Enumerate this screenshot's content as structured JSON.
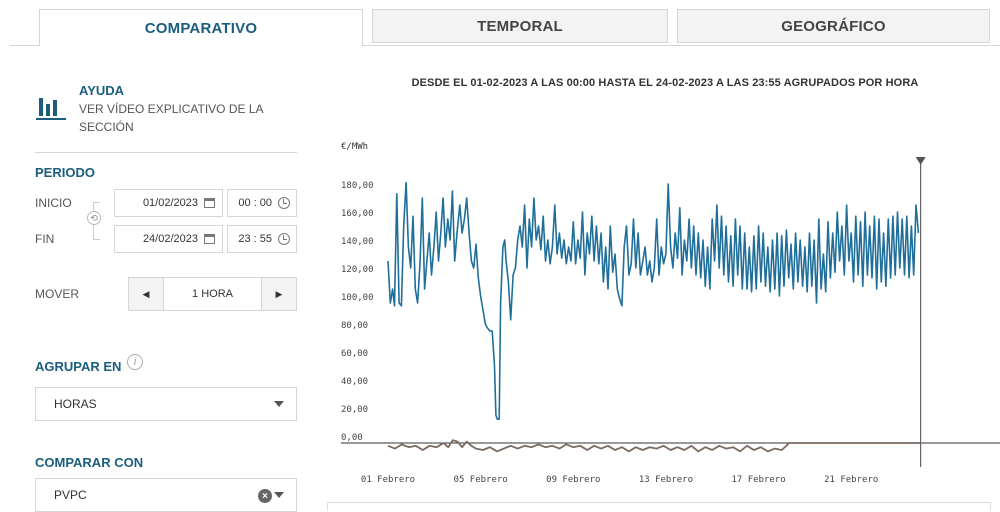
{
  "tabs": [
    {
      "label": "COMPARATIVO",
      "active": true
    },
    {
      "label": "TEMPORAL",
      "active": false
    },
    {
      "label": "GEOGRÁFICO",
      "active": false
    }
  ],
  "help": {
    "icon": "bar-chart-icon",
    "title": "AYUDA",
    "description": "VER VÍDEO EXPLICATIVO DE LA SECCIÓN"
  },
  "periodo": {
    "title": "PERIODO",
    "inicio_label": "INICIO",
    "inicio_date": "01/02/2023",
    "inicio_time": "00 : 00",
    "fin_label": "FIN",
    "fin_date": "24/02/2023",
    "fin_time": "23 : 55"
  },
  "mover": {
    "label": "MOVER",
    "value": "1 HORA",
    "prev": "◀",
    "next": "▶"
  },
  "agrupar": {
    "title": "AGRUPAR EN",
    "info": "i",
    "value": "HORAS"
  },
  "comparar": {
    "title": "COMPARAR CON",
    "value": "PVPC",
    "clear": "×"
  },
  "colors": {
    "accent": "#1a5e7e",
    "series_main": "#1f6f9a",
    "series_secondary": "#7a6a62"
  },
  "chart_data": {
    "type": "line",
    "title": "DESDE EL 01-02-2023 A LAS 00:00 HASTA EL 24-02-2023 A LAS 23:55 AGRUPADOS POR HORA",
    "ylabel": "€/MWh",
    "ylim": [
      -5,
      190
    ],
    "yticks": [
      "180,00",
      "160,00",
      "140,00",
      "120,00",
      "100,00",
      "80,00",
      "60,00",
      "40,00",
      "20,00",
      "0,00"
    ],
    "xticks": [
      "01 Febrero",
      "05 Febrero",
      "09 Febrero",
      "13 Febrero",
      "17 Febrero",
      "21 Febrero"
    ],
    "xrange_days": [
      0,
      24
    ],
    "grid": false,
    "legend": "none",
    "series": [
      {
        "color": "#1f6f9a",
        "points": [
          [
            0.0,
            130
          ],
          [
            0.1,
            100
          ],
          [
            0.2,
            110
          ],
          [
            0.28,
            98
          ],
          [
            0.38,
            178
          ],
          [
            0.48,
            100
          ],
          [
            0.58,
            98
          ],
          [
            0.68,
            155
          ],
          [
            0.78,
            186
          ],
          [
            0.88,
            140
          ],
          [
            0.98,
            125
          ],
          [
            1.08,
            162
          ],
          [
            1.18,
            110
          ],
          [
            1.28,
            100
          ],
          [
            1.38,
            128
          ],
          [
            1.48,
            175
          ],
          [
            1.58,
            110
          ],
          [
            1.68,
            130
          ],
          [
            1.78,
            150
          ],
          [
            1.88,
            120
          ],
          [
            1.98,
            140
          ],
          [
            2.08,
            165
          ],
          [
            2.18,
            130
          ],
          [
            2.28,
            150
          ],
          [
            2.38,
            175
          ],
          [
            2.48,
            140
          ],
          [
            2.58,
            160
          ],
          [
            2.68,
            145
          ],
          [
            2.78,
            180
          ],
          [
            2.88,
            130
          ],
          [
            2.98,
            150
          ],
          [
            3.1,
            170
          ],
          [
            3.2,
            150
          ],
          [
            3.3,
            160
          ],
          [
            3.4,
            175
          ],
          [
            3.5,
            150
          ],
          [
            3.6,
            130
          ],
          [
            3.7,
            125
          ],
          [
            3.8,
            142
          ],
          [
            3.9,
            118
          ],
          [
            4.0,
            105
          ],
          [
            4.1,
            95
          ],
          [
            4.2,
            85
          ],
          [
            4.3,
            82
          ],
          [
            4.4,
            80
          ],
          [
            4.5,
            80
          ],
          [
            4.6,
            55
          ],
          [
            4.66,
            20
          ],
          [
            4.72,
            17
          ],
          [
            4.8,
            17
          ],
          [
            4.86,
            100
          ],
          [
            4.96,
            140
          ],
          [
            5.04,
            145
          ],
          [
            5.1,
            130
          ],
          [
            5.2,
            115
          ],
          [
            5.3,
            88
          ],
          [
            5.4,
            120
          ],
          [
            5.5,
            125
          ],
          [
            5.6,
            145
          ],
          [
            5.7,
            155
          ],
          [
            5.8,
            140
          ],
          [
            5.9,
            170
          ],
          [
            6.0,
            125
          ],
          [
            6.1,
            160
          ],
          [
            6.2,
            140
          ],
          [
            6.3,
            175
          ],
          [
            6.4,
            145
          ],
          [
            6.5,
            155
          ],
          [
            6.6,
            138
          ],
          [
            6.7,
            162
          ],
          [
            6.8,
            130
          ],
          [
            6.9,
            145
          ],
          [
            7.0,
            128
          ],
          [
            7.1,
            140
          ],
          [
            7.2,
            170
          ],
          [
            7.3,
            135
          ],
          [
            7.4,
            150
          ],
          [
            7.5,
            132
          ],
          [
            7.6,
            145
          ],
          [
            7.7,
            128
          ],
          [
            7.8,
            140
          ],
          [
            7.9,
            130
          ],
          [
            8.0,
            158
          ],
          [
            8.1,
            128
          ],
          [
            8.2,
            145
          ],
          [
            8.3,
            132
          ],
          [
            8.4,
            165
          ],
          [
            8.5,
            120
          ],
          [
            8.6,
            150
          ],
          [
            8.7,
            135
          ],
          [
            8.8,
            162
          ],
          [
            8.9,
            130
          ],
          [
            9.0,
            155
          ],
          [
            9.1,
            128
          ],
          [
            9.2,
            150
          ],
          [
            9.3,
            115
          ],
          [
            9.4,
            140
          ],
          [
            9.5,
            110
          ],
          [
            9.6,
            155
          ],
          [
            9.7,
            122
          ],
          [
            9.8,
            135
          ],
          [
            9.9,
            110
          ],
          [
            10.0,
            103
          ],
          [
            10.1,
            98
          ],
          [
            10.2,
            140
          ],
          [
            10.3,
            155
          ],
          [
            10.4,
            120
          ],
          [
            10.5,
            128
          ],
          [
            10.6,
            160
          ],
          [
            10.7,
            125
          ],
          [
            10.8,
            150
          ],
          [
            10.9,
            120
          ],
          [
            11.0,
            130
          ],
          [
            11.1,
            140
          ],
          [
            11.2,
            120
          ],
          [
            11.3,
            130
          ],
          [
            11.4,
            115
          ],
          [
            11.5,
            125
          ],
          [
            11.6,
            160
          ],
          [
            11.7,
            120
          ],
          [
            11.8,
            140
          ],
          [
            11.9,
            128
          ],
          [
            12.0,
            135
          ],
          [
            12.1,
            185
          ],
          [
            12.2,
            140
          ],
          [
            12.3,
            125
          ],
          [
            12.4,
            150
          ],
          [
            12.5,
            132
          ],
          [
            12.6,
            168
          ],
          [
            12.7,
            120
          ],
          [
            12.8,
            145
          ],
          [
            12.9,
            130
          ],
          [
            13.0,
            160
          ],
          [
            13.1,
            125
          ],
          [
            13.2,
            155
          ],
          [
            13.3,
            120
          ],
          [
            13.4,
            150
          ],
          [
            13.5,
            118
          ],
          [
            13.6,
            145
          ],
          [
            13.7,
            112
          ],
          [
            13.8,
            140
          ],
          [
            13.9,
            110
          ],
          [
            14.0,
            160
          ],
          [
            14.1,
            130
          ],
          [
            14.2,
            170
          ],
          [
            14.3,
            125
          ],
          [
            14.4,
            162
          ],
          [
            14.5,
            120
          ],
          [
            14.6,
            155
          ],
          [
            14.7,
            115
          ],
          [
            14.8,
            148
          ],
          [
            14.9,
            112
          ],
          [
            15.0,
            160
          ],
          [
            15.1,
            120
          ],
          [
            15.2,
            155
          ],
          [
            15.3,
            110
          ],
          [
            15.4,
            150
          ],
          [
            15.5,
            110
          ],
          [
            15.6,
            140
          ],
          [
            15.7,
            108
          ],
          [
            15.8,
            148
          ],
          [
            15.9,
            110
          ],
          [
            16.0,
            155
          ],
          [
            16.1,
            115
          ],
          [
            16.2,
            150
          ],
          [
            16.3,
            112
          ],
          [
            16.4,
            140
          ],
          [
            16.5,
            108
          ],
          [
            16.6,
            145
          ],
          [
            16.7,
            110
          ],
          [
            16.8,
            150
          ],
          [
            16.9,
            105
          ],
          [
            17.0,
            148
          ],
          [
            17.1,
            112
          ],
          [
            17.2,
            152
          ],
          [
            17.3,
            118
          ],
          [
            17.4,
            142
          ],
          [
            17.5,
            110
          ],
          [
            17.6,
            150
          ],
          [
            17.7,
            115
          ],
          [
            17.8,
            145
          ],
          [
            17.9,
            112
          ],
          [
            18.0,
            140
          ],
          [
            18.1,
            108
          ],
          [
            18.2,
            150
          ],
          [
            18.3,
            112
          ],
          [
            18.4,
            145
          ],
          [
            18.5,
            100
          ],
          [
            18.6,
            160
          ],
          [
            18.7,
            110
          ],
          [
            18.8,
            135
          ],
          [
            18.9,
            108
          ],
          [
            19.0,
            158
          ],
          [
            19.1,
            118
          ],
          [
            19.2,
            150
          ],
          [
            19.3,
            122
          ],
          [
            19.4,
            165
          ],
          [
            19.5,
            130
          ],
          [
            19.6,
            155
          ],
          [
            19.7,
            120
          ],
          [
            19.8,
            170
          ],
          [
            19.9,
            130
          ],
          [
            20.0,
            150
          ],
          [
            20.1,
            115
          ],
          [
            20.2,
            162
          ],
          [
            20.3,
            120
          ],
          [
            20.4,
            158
          ],
          [
            20.5,
            112
          ],
          [
            20.6,
            165
          ],
          [
            20.7,
            120
          ],
          [
            20.8,
            155
          ],
          [
            20.9,
            118
          ],
          [
            21.0,
            162
          ],
          [
            21.1,
            110
          ],
          [
            21.2,
            160
          ],
          [
            21.3,
            115
          ],
          [
            21.4,
            150
          ],
          [
            21.5,
            112
          ],
          [
            21.6,
            160
          ],
          [
            21.7,
            118
          ],
          [
            21.8,
            162
          ],
          [
            21.9,
            120
          ],
          [
            22.0,
            165
          ],
          [
            22.1,
            125
          ],
          [
            22.2,
            160
          ],
          [
            22.3,
            120
          ],
          [
            22.4,
            162
          ],
          [
            22.5,
            118
          ],
          [
            22.6,
            155
          ],
          [
            22.7,
            120
          ],
          [
            22.8,
            170
          ],
          [
            22.9,
            150
          ]
        ]
      },
      {
        "color": "#7a6a62",
        "points": [
          [
            0.0,
            -2
          ],
          [
            0.3,
            -4
          ],
          [
            0.6,
            -1
          ],
          [
            0.9,
            -3
          ],
          [
            1.2,
            -2
          ],
          [
            1.5,
            -5
          ],
          [
            1.8,
            -2
          ],
          [
            2.1,
            -3
          ],
          [
            2.4,
            0
          ],
          [
            2.6,
            -3
          ],
          [
            2.8,
            2
          ],
          [
            3.0,
            1
          ],
          [
            3.2,
            -3
          ],
          [
            3.4,
            1
          ],
          [
            3.6,
            -2
          ],
          [
            3.8,
            -4
          ],
          [
            4.1,
            -5
          ],
          [
            4.4,
            -3
          ],
          [
            4.7,
            -6
          ],
          [
            5.0,
            -4
          ],
          [
            5.3,
            -2
          ],
          [
            5.6,
            -4
          ],
          [
            5.9,
            -2
          ],
          [
            6.2,
            -3
          ],
          [
            6.5,
            -1
          ],
          [
            6.8,
            -3
          ],
          [
            7.1,
            -2
          ],
          [
            7.4,
            -4
          ],
          [
            7.7,
            -1
          ],
          [
            8.0,
            -3
          ],
          [
            8.3,
            -2
          ],
          [
            8.6,
            -5
          ],
          [
            8.9,
            -2
          ],
          [
            9.2,
            -4
          ],
          [
            9.5,
            -2
          ],
          [
            9.8,
            -5
          ],
          [
            10.1,
            -3
          ],
          [
            10.4,
            -6
          ],
          [
            10.7,
            -3
          ],
          [
            11.0,
            -5
          ],
          [
            11.3,
            -3
          ],
          [
            11.6,
            -4
          ],
          [
            11.9,
            -2
          ],
          [
            12.2,
            -5
          ],
          [
            12.5,
            -3
          ],
          [
            12.8,
            -5
          ],
          [
            13.1,
            -2
          ],
          [
            13.4,
            -6
          ],
          [
            13.7,
            -3
          ],
          [
            14.0,
            -5
          ],
          [
            14.3,
            -2
          ],
          [
            14.6,
            -4
          ],
          [
            14.9,
            -3
          ],
          [
            15.2,
            -6
          ],
          [
            15.5,
            -2
          ],
          [
            15.8,
            -5
          ],
          [
            16.1,
            -3
          ],
          [
            16.4,
            -6
          ],
          [
            16.7,
            -4
          ],
          [
            17.0,
            -5
          ],
          [
            17.2,
            -2
          ],
          [
            17.3,
            0
          ],
          [
            18.5,
            0
          ],
          [
            20.0,
            0
          ],
          [
            22.0,
            0
          ],
          [
            23.0,
            0
          ]
        ]
      }
    ],
    "cursor_day": 23.0
  }
}
